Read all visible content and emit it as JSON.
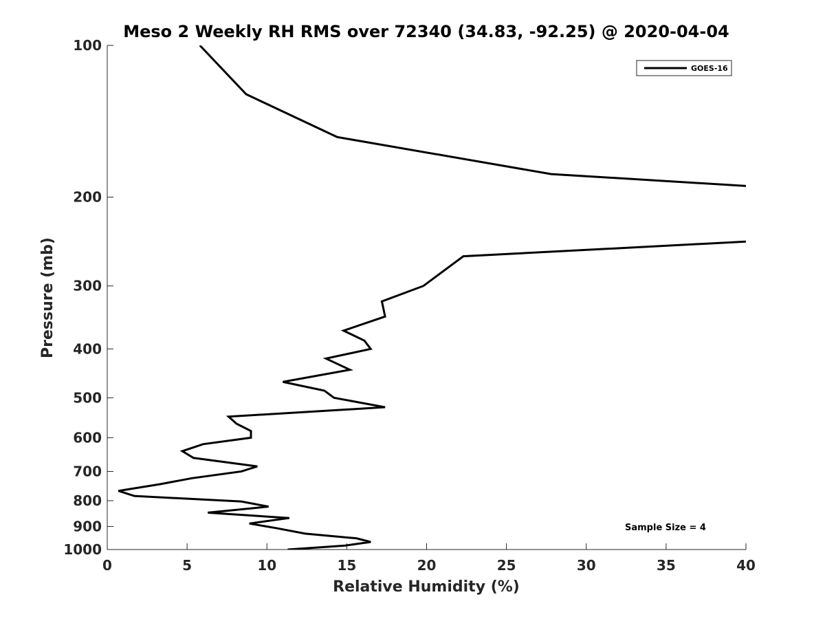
{
  "chart_data": {
    "type": "line",
    "title": "Meso 2 Weekly RH RMS over 72340 (34.83, -92.25) @ 2020-04-04",
    "xlabel": "Relative Humidity (%)",
    "ylabel": "Pressure (mb)",
    "xlim": [
      0,
      40
    ],
    "ylim": [
      100,
      1000
    ],
    "yscale": "log",
    "yreversed": true,
    "xticks": [
      0,
      5,
      10,
      15,
      20,
      25,
      30,
      35,
      40
    ],
    "yticks": [
      100,
      200,
      300,
      400,
      500,
      600,
      700,
      800,
      900,
      1000
    ],
    "grid": false,
    "legend": {
      "placement": "top-right",
      "entries": [
        "GOES-16"
      ]
    },
    "annotation": "Sample Size = 4",
    "series": [
      {
        "name": "GOES-16",
        "color": "#000000",
        "points": [
          [
            5.8,
            100
          ],
          [
            8.7,
            125
          ],
          [
            14.4,
            152
          ],
          [
            27.8,
            180
          ],
          [
            40,
            190
          ],
          [
            null,
            null
          ],
          [
            40,
            245
          ],
          [
            22.3,
            262
          ],
          [
            19.8,
            300
          ],
          [
            17.2,
            322
          ],
          [
            17.4,
            345
          ],
          [
            14.8,
            368
          ],
          [
            16.1,
            385
          ],
          [
            16.5,
            400
          ],
          [
            13.7,
            418
          ],
          [
            15.2,
            440
          ],
          [
            11.0,
            465
          ],
          [
            13.6,
            484
          ],
          [
            14.2,
            500
          ],
          [
            17.4,
            522
          ],
          [
            7.6,
            545
          ],
          [
            8.1,
            563
          ],
          [
            9.0,
            582
          ],
          [
            9.0,
            600
          ],
          [
            6.0,
            618
          ],
          [
            4.7,
            638
          ],
          [
            5.4,
            658
          ],
          [
            9.4,
            684
          ],
          [
            8.4,
            700
          ],
          [
            5.3,
            722
          ],
          [
            3.3,
            742
          ],
          [
            0.7,
            765
          ],
          [
            1.7,
            783
          ],
          [
            8.4,
            803
          ],
          [
            10.1,
            822
          ],
          [
            6.3,
            845
          ],
          [
            11.4,
            866
          ],
          [
            8.9,
            888
          ],
          [
            10.6,
            907
          ],
          [
            12.4,
            930
          ],
          [
            15.6,
            950
          ],
          [
            16.5,
            966
          ],
          [
            14.9,
            982
          ],
          [
            11.3,
            1000
          ]
        ]
      }
    ]
  }
}
